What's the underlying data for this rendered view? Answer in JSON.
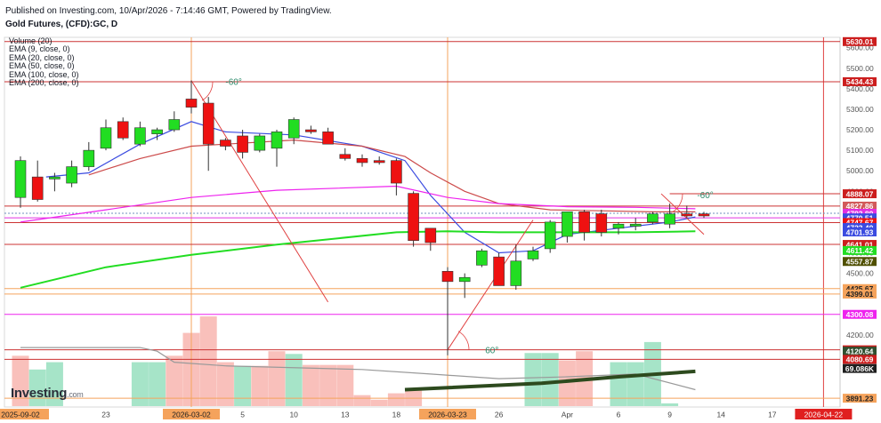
{
  "header": {
    "published": "Published on Investing.com, 10/Apr/2026 - 7:14:46 GMT, Powered by TradingView.",
    "symbol": "Gold Futures, (CFD):GC, D"
  },
  "legend": [
    "Volume (20)",
    "EMA (9, close, 0)",
    "EMA (20, close, 0)",
    "EMA (50, close, 0)",
    "EMA (100, close, 0)",
    "EMA (200, close, 0)"
  ],
  "logo": {
    "name": "Investing",
    "suffix": ".com"
  },
  "colors": {
    "up": "#22dd22",
    "down": "#ee1111",
    "vol_up": "#a6e4c8",
    "vol_down": "#f9c0bb",
    "ema9": "#3b4be0",
    "ema20": "#cc4a4a",
    "ema50": "#ee22ee",
    "ema100": "#22dd22",
    "ema200": "#999999",
    "hline": "#cc3333",
    "vline": "#f5a35c",
    "fan": "#e04040",
    "angle": "#2a8a6a"
  },
  "chart_data": {
    "type": "candlestick",
    "y_range": [
      3870,
      5640
    ],
    "y_ticks": [
      4200,
      4300,
      4400,
      4500,
      4600,
      4700,
      4800,
      4900,
      5000,
      5100,
      5200,
      5300,
      5400,
      5500,
      5600
    ],
    "x_ticks": [
      {
        "i": 0,
        "label": "2025-09-02",
        "highlight": true
      },
      {
        "i": 5,
        "label": "23"
      },
      {
        "i": 10,
        "label": "2026-03-02",
        "highlight": true
      },
      {
        "i": 13,
        "label": "5"
      },
      {
        "i": 16,
        "label": "10"
      },
      {
        "i": 19,
        "label": "13"
      },
      {
        "i": 22,
        "label": "18"
      },
      {
        "i": 25,
        "label": "2026-03-23",
        "highlight": true
      },
      {
        "i": 28,
        "label": "26"
      },
      {
        "i": 32,
        "label": "Apr"
      },
      {
        "i": 35,
        "label": "6"
      },
      {
        "i": 38,
        "label": "9"
      },
      {
        "i": 41,
        "label": "14"
      },
      {
        "i": 44,
        "label": "17"
      },
      {
        "i": 47,
        "label": "2026-04-22",
        "highlight": true,
        "red": true
      }
    ],
    "candles": [
      {
        "o": 4870,
        "h": 5070,
        "l": 4820,
        "c": 5050
      },
      {
        "o": 4970,
        "h": 5050,
        "l": 4850,
        "c": 4860
      },
      {
        "o": 4960,
        "h": 4990,
        "l": 4900,
        "c": 4970
      },
      {
        "o": 4940,
        "h": 5050,
        "l": 4920,
        "c": 5020
      },
      {
        "o": 5020,
        "h": 5140,
        "l": 5000,
        "c": 5100
      },
      {
        "o": 5110,
        "h": 5250,
        "l": 5100,
        "c": 5210
      },
      {
        "o": 5240,
        "h": 5260,
        "l": 5150,
        "c": 5160
      },
      {
        "o": 5130,
        "h": 5240,
        "l": 5120,
        "c": 5210
      },
      {
        "o": 5180,
        "h": 5210,
        "l": 5150,
        "c": 5200
      },
      {
        "o": 5200,
        "h": 5290,
        "l": 5190,
        "c": 5250
      },
      {
        "o": 5350,
        "h": 5440,
        "l": 5280,
        "c": 5310
      },
      {
        "o": 5330,
        "h": 5360,
        "l": 5000,
        "c": 5130
      },
      {
        "o": 5150,
        "h": 5160,
        "l": 5100,
        "c": 5120
      },
      {
        "o": 5170,
        "h": 5200,
        "l": 5060,
        "c": 5090
      },
      {
        "o": 5100,
        "h": 5180,
        "l": 5090,
        "c": 5170
      },
      {
        "o": 5110,
        "h": 5200,
        "l": 5020,
        "c": 5190
      },
      {
        "o": 5160,
        "h": 5260,
        "l": 5130,
        "c": 5250
      },
      {
        "o": 5200,
        "h": 5220,
        "l": 5180,
        "c": 5190
      },
      {
        "o": 5190,
        "h": 5210,
        "l": 5130,
        "c": 5130
      },
      {
        "o": 5080,
        "h": 5110,
        "l": 5050,
        "c": 5060
      },
      {
        "o": 5060,
        "h": 5080,
        "l": 5020,
        "c": 5040
      },
      {
        "o": 5050,
        "h": 5070,
        "l": 5030,
        "c": 5040
      },
      {
        "o": 5050,
        "h": 5060,
        "l": 4880,
        "c": 4940
      },
      {
        "o": 4890,
        "h": 4900,
        "l": 4630,
        "c": 4660
      },
      {
        "o": 4720,
        "h": 4720,
        "l": 4610,
        "c": 4650
      },
      {
        "o": 4510,
        "h": 4530,
        "l": 4100,
        "c": 4460
      },
      {
        "o": 4460,
        "h": 4500,
        "l": 4380,
        "c": 4480
      },
      {
        "o": 4540,
        "h": 4620,
        "l": 4530,
        "c": 4610
      },
      {
        "o": 4580,
        "h": 4600,
        "l": 4440,
        "c": 4440
      },
      {
        "o": 4440,
        "h": 4640,
        "l": 4420,
        "c": 4560
      },
      {
        "o": 4570,
        "h": 4630,
        "l": 4560,
        "c": 4610
      },
      {
        "o": 4620,
        "h": 4760,
        "l": 4600,
        "c": 4750
      },
      {
        "o": 4680,
        "h": 4800,
        "l": 4650,
        "c": 4800
      },
      {
        "o": 4800,
        "h": 4810,
        "l": 4660,
        "c": 4700
      },
      {
        "o": 4790,
        "h": 4810,
        "l": 4680,
        "c": 4700
      },
      {
        "o": 4720,
        "h": 4750,
        "l": 4690,
        "c": 4740
      },
      {
        "o": 4730,
        "h": 4770,
        "l": 4710,
        "c": 4740
      },
      {
        "o": 4750,
        "h": 4800,
        "l": 4740,
        "c": 4790
      },
      {
        "o": 4740,
        "h": 4840,
        "l": 4720,
        "c": 4790
      },
      {
        "o": 4790,
        "h": 4830,
        "l": 4770,
        "c": 4780
      },
      {
        "o": 4790,
        "h": 4800,
        "l": 4770,
        "c": 4780
      }
    ],
    "volume_scale_max": 100,
    "volume": [
      {
        "v": 55,
        "up": false
      },
      {
        "v": 40,
        "up": true
      },
      {
        "v": 48,
        "up": true
      },
      {
        "v": 0,
        "up": true
      },
      {
        "v": 0,
        "up": true
      },
      {
        "v": 0,
        "up": true
      },
      {
        "v": 0,
        "up": true
      },
      {
        "v": 48,
        "up": true
      },
      {
        "v": 48,
        "up": true
      },
      {
        "v": 55,
        "up": false
      },
      {
        "v": 80,
        "up": false
      },
      {
        "v": 98,
        "up": false
      },
      {
        "v": 48,
        "up": false
      },
      {
        "v": 44,
        "up": true
      },
      {
        "v": 44,
        "up": false
      },
      {
        "v": 60,
        "up": false
      },
      {
        "v": 57,
        "up": true
      },
      {
        "v": 45,
        "up": false
      },
      {
        "v": 45,
        "up": false
      },
      {
        "v": 45,
        "up": false
      },
      {
        "v": 12,
        "up": false
      },
      {
        "v": 7,
        "up": false
      },
      {
        "v": 14,
        "up": false
      },
      {
        "v": 18,
        "up": false
      },
      {
        "v": 0,
        "up": false
      },
      {
        "v": 0,
        "up": false
      },
      {
        "v": 0,
        "up": false
      },
      {
        "v": 0,
        "up": false
      },
      {
        "v": 0,
        "up": false
      },
      {
        "v": 0,
        "up": false
      },
      {
        "v": 58,
        "up": true
      },
      {
        "v": 58,
        "up": true
      },
      {
        "v": 50,
        "up": false
      },
      {
        "v": 60,
        "up": false
      },
      {
        "v": 0,
        "up": false
      },
      {
        "v": 48,
        "up": true
      },
      {
        "v": 48,
        "up": true
      },
      {
        "v": 70,
        "up": true
      },
      {
        "v": 3,
        "up": true
      },
      {
        "v": 0,
        "up": true
      },
      {
        "v": 0,
        "up": true
      }
    ],
    "emas": [
      {
        "name": "EMA 9",
        "color": "#3b4be0",
        "points": [
          [
            1.5,
            4970
          ],
          [
            4,
            4990
          ],
          [
            7,
            5130
          ],
          [
            10,
            5240
          ],
          [
            12,
            5190
          ],
          [
            16,
            5175
          ],
          [
            20,
            5120
          ],
          [
            22.5,
            5050
          ],
          [
            24,
            4880
          ],
          [
            26,
            4700
          ],
          [
            28,
            4600
          ],
          [
            30,
            4610
          ],
          [
            32,
            4690
          ],
          [
            35,
            4720
          ],
          [
            38,
            4750
          ],
          [
            39.5,
            4775
          ]
        ]
      },
      {
        "name": "EMA 20",
        "color": "#cc4a4a",
        "points": [
          [
            4,
            4980
          ],
          [
            7,
            5060
          ],
          [
            10,
            5120
          ],
          [
            12,
            5130
          ],
          [
            16,
            5150
          ],
          [
            20,
            5120
          ],
          [
            22.5,
            5070
          ],
          [
            24,
            4990
          ],
          [
            26,
            4900
          ],
          [
            28,
            4840
          ],
          [
            31,
            4810
          ],
          [
            34,
            4805
          ],
          [
            37,
            4800
          ],
          [
            39.5,
            4800
          ]
        ]
      },
      {
        "name": "EMA 50",
        "color": "#ee22ee",
        "points": [
          [
            0,
            4750
          ],
          [
            5,
            4810
          ],
          [
            10,
            4870
          ],
          [
            15,
            4905
          ],
          [
            22,
            4925
          ],
          [
            25,
            4870
          ],
          [
            28,
            4840
          ],
          [
            32,
            4825
          ],
          [
            36,
            4822
          ],
          [
            39.5,
            4815
          ]
        ]
      },
      {
        "name": "EMA 100",
        "color": "#22dd22",
        "points": [
          [
            0,
            4430
          ],
          [
            5,
            4530
          ],
          [
            10,
            4590
          ],
          [
            15,
            4640
          ],
          [
            22,
            4700
          ],
          [
            25,
            4705
          ],
          [
            28,
            4700
          ],
          [
            32,
            4700
          ],
          [
            36,
            4700
          ],
          [
            39.5,
            4705
          ]
        ]
      },
      {
        "name": "EMA 200 (volume pane)",
        "color": "#999999",
        "pane": "volume",
        "points": [
          [
            0,
            64
          ],
          [
            7,
            64
          ],
          [
            8,
            60
          ],
          [
            9,
            48
          ],
          [
            12,
            44
          ],
          [
            20,
            40
          ],
          [
            24,
            35
          ],
          [
            28,
            30
          ],
          [
            32,
            32
          ],
          [
            36,
            35
          ],
          [
            39.5,
            18
          ]
        ]
      }
    ],
    "volume_trend": {
      "points": [
        [
          22.5,
          18
        ],
        [
          30.5,
          25
        ],
        [
          35,
          32
        ],
        [
          39.5,
          38
        ]
      ]
    },
    "horizontal_levels": [
      {
        "price": 5630.01,
        "label": "5630.01",
        "bg": "#cc1e1e",
        "fg": "#ffffff",
        "line": "#cc3333"
      },
      {
        "price": 5434.43,
        "label": "5434.43",
        "bg": "#cc1e1e",
        "fg": "#ffffff",
        "line": "#cc3333"
      },
      {
        "price": 4888.07,
        "label": "4888.07",
        "bg": "#cc1e1e",
        "fg": "#ffffff",
        "line": "#cc3333",
        "from_i": 38
      },
      {
        "price": 4827.86,
        "label": "4827.86",
        "bg": "#d25a5a",
        "fg": "#ffffff",
        "line": "#cc3333"
      },
      {
        "price": 4792.89,
        "label": "4792.89",
        "bg": "#e030e0",
        "fg": "#ffffff",
        "line": "#6f8fbf",
        "dotted": true
      },
      {
        "price": 4770.51,
        "label": "4770.51",
        "bg": "#3b4be0",
        "fg": "#ffffff",
        "line": "#e030e0"
      },
      {
        "price": 4747.67,
        "label": "4747.67",
        "bg": "#ee1111",
        "fg": "#ffffff",
        "line": "#cc3333"
      },
      {
        "price": 4723.49,
        "label": "4723.49",
        "bg": "#3b4be0",
        "fg": "#ffffff"
      },
      {
        "price": 4701.93,
        "label": "4701.93",
        "bg": "#3b4be0",
        "fg": "#ffffff"
      },
      {
        "price": 4641.01,
        "label": "4641.01",
        "bg": "#cc1e1e",
        "fg": "#ffffff",
        "line": "#cc3333"
      },
      {
        "price": 4611.42,
        "label": "4611.42",
        "bg": "#22dd22",
        "fg": "#ffffff"
      },
      {
        "price": 4557.87,
        "label": "4557.87",
        "bg": "#505000",
        "fg": "#ffffff"
      },
      {
        "price": 4425.67,
        "label": "4425.67",
        "bg": "#f5a35c",
        "fg": "#222222",
        "line": "#f5a35c"
      },
      {
        "price": 4399.01,
        "label": "4399.01",
        "bg": "#f5a35c",
        "fg": "#222222",
        "line": "#f5a35c"
      },
      {
        "price": 4300.08,
        "label": "4300.08",
        "bg": "#ee22ee",
        "fg": "#ffffff",
        "line": "#ee22ee"
      },
      {
        "price": 4127.26,
        "label": "4127.26",
        "bg": "#cc1e1e",
        "fg": "#ffffff",
        "line": "#cc3333"
      },
      {
        "price": 4120.64,
        "label": "4120.64",
        "bg": "#2f4f2f",
        "fg": "#ffffff"
      },
      {
        "price": 4080.69,
        "label": "4080.69",
        "bg": "#cc1e1e",
        "fg": "#ffffff",
        "line": "#cc3333"
      },
      {
        "price": 4036.29,
        "label": "69.086K",
        "bg": "#1e1e1e",
        "fg": "#ffffff"
      },
      {
        "price": 3891.23,
        "label": "3891.23",
        "bg": "#f5a35c",
        "fg": "#222222",
        "line": "#f5a35c"
      }
    ],
    "vertical_markers": [
      {
        "i": 10,
        "color": "#f5a35c"
      },
      {
        "i": 25,
        "color": "#f5a35c"
      },
      {
        "i": 47,
        "color": "#e04040"
      }
    ],
    "fan_lines": [
      {
        "a": [
          10,
          5440
        ],
        "b": [
          18,
          4360
        ]
      },
      {
        "a": [
          25,
          4127
        ],
        "b": [
          30,
          4760
        ]
      },
      {
        "a": [
          37.5,
          4888
        ],
        "b": [
          40,
          4690
        ]
      }
    ],
    "angle_labels": [
      {
        "i": 12,
        "price": 5420,
        "text": "-60°"
      },
      {
        "i": 27.2,
        "price": 4110,
        "text": "60°"
      },
      {
        "i": 39.6,
        "price": 4867,
        "text": "-60°"
      }
    ]
  }
}
